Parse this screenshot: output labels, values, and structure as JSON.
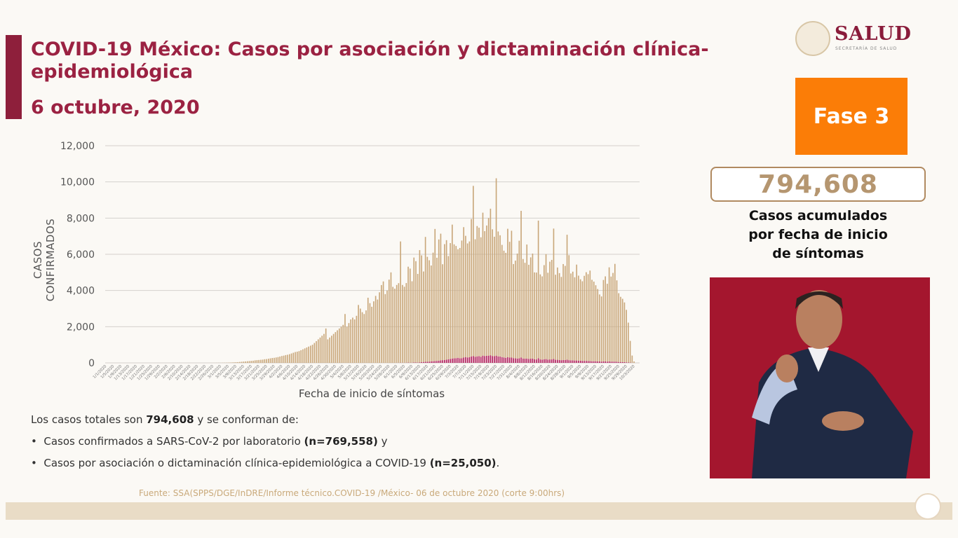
{
  "header": {
    "title_line1": "COVID-19 México: Casos por asociación y dictaminación clínica-",
    "title_line2": "epidemiológica",
    "date": "6 octubre, 2020"
  },
  "logo": {
    "name": "SALUD",
    "subtitle": "SECRETARÍA DE SALUD"
  },
  "side": {
    "phase": "Fase 3",
    "total": "794,608",
    "caption_lines": [
      "Casos acumulados",
      "por fecha de inicio",
      "de síntomas"
    ]
  },
  "summary": {
    "intro_pre": "Los casos totales son ",
    "intro_total": "794,608",
    "intro_post": "  y se conforman de:",
    "bullet1_text": "Casos confirmados a SARS-CoV-2 por laboratorio ",
    "bullet1_n": "(n=769,558)",
    "bullet1_post": " y",
    "bullet2_text": "Casos por asociación o dictaminación clínica-epidemiológica a COVID-19 ",
    "bullet2_n": "(n=25,050)",
    "bullet2_post": "."
  },
  "source": "Fuente: SSA(SPPS/DGE/InDRE/Informe técnico.COVID-19 /México- 06 de octubre  2020 (corte 9:00hrs)",
  "colors": {
    "title": "#9b2242",
    "lab": "#c9a77a",
    "association": "#b0185a",
    "phase": "#fb7d07"
  },
  "chart_data": {
    "type": "bar",
    "stacked": true,
    "xlabel": "Fecha de inicio de síntomas",
    "ylabel": "CASOS CONFIRMADOS",
    "ylim": [
      0,
      12000
    ],
    "yticks": [
      "0",
      "2,000",
      "4,000",
      "6,000",
      "8,000",
      "10,000",
      "12,000"
    ],
    "grid": true,
    "x_first": "1/1/2020",
    "x_last": "10/3/2020",
    "x_tick_every_days": 4,
    "x_ticks": [
      "1/1/2020",
      "1/5/2020",
      "1/9/2020",
      "1/13/2020",
      "1/17/2020",
      "1/21/2020",
      "1/25/2020",
      "1/29/2020",
      "2/2/2020",
      "2/6/2020",
      "2/10/2020",
      "2/14/2020",
      "2/18/2020",
      "2/22/2020",
      "2/26/2020",
      "3/1/2020",
      "3/5/2020",
      "3/9/2020",
      "3/13/2020",
      "3/17/2020",
      "3/21/2020",
      "3/25/2020",
      "3/29/2020",
      "4/2/2020",
      "4/6/2020",
      "4/10/2020",
      "4/14/2020",
      "4/18/2020",
      "4/22/2020",
      "4/26/2020",
      "4/30/2020",
      "5/4/2020",
      "5/8/2020",
      "5/12/2020",
      "5/16/2020",
      "5/20/2020",
      "5/24/2020",
      "5/28/2020",
      "6/1/2020",
      "6/5/2020",
      "6/9/2020",
      "6/13/2020",
      "6/17/2020",
      "6/21/2020",
      "6/25/2020",
      "6/29/2020",
      "7/3/2020",
      "7/7/2020",
      "7/11/2020",
      "7/15/2020",
      "7/19/2020",
      "7/23/2020",
      "7/27/2020",
      "7/31/2020",
      "8/4/2020",
      "8/8/2020",
      "8/12/2020",
      "8/16/2020",
      "8/20/2020",
      "8/24/2020",
      "8/28/2020",
      "9/1/2020",
      "9/5/2020",
      "9/9/2020",
      "9/13/2020",
      "9/17/2020",
      "9/21/2020",
      "9/25/2020",
      "9/29/2020",
      "10/3/2020"
    ],
    "series": [
      {
        "color": "#c9a77a",
        "values": [
          0,
          0,
          0,
          0,
          0,
          0,
          0,
          0,
          0,
          0,
          0,
          0,
          0,
          0,
          0,
          0,
          0,
          0,
          0,
          0,
          0,
          0,
          0,
          0,
          0,
          0,
          0,
          0,
          0,
          0,
          0,
          0,
          0,
          0,
          0,
          0,
          0,
          0,
          0,
          0,
          0,
          0,
          0,
          0,
          0,
          0,
          0,
          0,
          0,
          0,
          0,
          0,
          0,
          0,
          1,
          2,
          2,
          3,
          4,
          5,
          5,
          8,
          10,
          12,
          15,
          20,
          25,
          30,
          35,
          40,
          50,
          60,
          70,
          80,
          90,
          100,
          110,
          120,
          140,
          150,
          160,
          170,
          180,
          200,
          210,
          230,
          250,
          270,
          280,
          300,
          320,
          350,
          380,
          400,
          430,
          450,
          480,
          520,
          560,
          600,
          620,
          650,
          700,
          750,
          800,
          850,
          900,
          950,
          1000,
          1100,
          1200,
          1300,
          1400,
          1500,
          1600,
          1900,
          1300,
          1400,
          1500,
          1600,
          1700,
          1800,
          1900,
          2000,
          2100,
          2700,
          2000,
          2200,
          2400,
          2500,
          2400,
          2600,
          3200,
          3000,
          2800,
          2700,
          2900,
          3600,
          3300,
          3100,
          3400,
          3700,
          3500,
          3900,
          4300,
          4500,
          3800,
          4000,
          4600,
          5000,
          4200,
          4100,
          4300,
          4400,
          6700,
          4300,
          4200,
          4400,
          5300,
          5200,
          4500,
          5800,
          5600,
          4900,
          6200,
          5900,
          5000,
          6900,
          5800,
          5600,
          5300,
          6000,
          7300,
          5700,
          6700,
          7000,
          5300,
          6400,
          6600,
          5700,
          6400,
          7400,
          6300,
          6200,
          6000,
          6100,
          6500,
          7200,
          6700,
          6300,
          6400,
          7600,
          9400,
          6500,
          7200,
          7100,
          6600,
          7900,
          6900,
          7200,
          7600,
          8100,
          7000,
          6600,
          9800,
          6900,
          6700,
          6200,
          5900,
          5800,
          7100,
          6400,
          7000,
          5200,
          5400,
          5800,
          6500,
          8100,
          5500,
          5300,
          6300,
          5200,
          5600,
          5800,
          4800,
          4800,
          7600,
          4700,
          4600,
          5200,
          5800,
          4800,
          5400,
          5500,
          7200,
          4700,
          5100,
          4800,
          4600,
          5300,
          5200,
          6900,
          5800,
          4800,
          4900,
          4600,
          5300,
          4700,
          4500,
          4400,
          4700,
          4900,
          4800,
          5000,
          4500,
          4400,
          4200,
          4000,
          3700,
          3600,
          4500,
          4700,
          4300,
          5200,
          4700,
          4900,
          5400,
          4500,
          3800,
          3600,
          3500,
          3300,
          2900,
          2200,
          1200,
          400,
          80
        ]
      },
      {
        "color": "#b0185a",
        "values": [
          0,
          0,
          0,
          0,
          0,
          0,
          0,
          0,
          0,
          0,
          0,
          0,
          0,
          0,
          0,
          0,
          0,
          0,
          0,
          0,
          0,
          0,
          0,
          0,
          0,
          0,
          0,
          0,
          0,
          0,
          0,
          0,
          0,
          0,
          0,
          0,
          0,
          0,
          0,
          0,
          0,
          0,
          0,
          0,
          0,
          0,
          0,
          0,
          0,
          0,
          0,
          0,
          0,
          0,
          0,
          0,
          0,
          0,
          0,
          0,
          0,
          0,
          0,
          0,
          0,
          0,
          0,
          0,
          0,
          0,
          0,
          0,
          0,
          0,
          0,
          0,
          0,
          0,
          0,
          0,
          0,
          0,
          0,
          0,
          0,
          0,
          0,
          0,
          0,
          0,
          0,
          0,
          0,
          0,
          0,
          0,
          0,
          0,
          0,
          0,
          0,
          0,
          0,
          0,
          0,
          0,
          0,
          0,
          0,
          0,
          0,
          0,
          0,
          0,
          0,
          0,
          0,
          0,
          0,
          0,
          0,
          0,
          0,
          0,
          0,
          0,
          0,
          0,
          0,
          0,
          0,
          0,
          0,
          0,
          0,
          0,
          0,
          0,
          0,
          0,
          0,
          0,
          0,
          0,
          0,
          0,
          0,
          0,
          0,
          0,
          0,
          0,
          5,
          5,
          10,
          5,
          5,
          10,
          15,
          10,
          10,
          20,
          20,
          15,
          30,
          40,
          50,
          60,
          60,
          70,
          80,
          90,
          100,
          110,
          120,
          140,
          150,
          160,
          180,
          200,
          220,
          240,
          250,
          260,
          280,
          250,
          260,
          300,
          320,
          300,
          310,
          350,
          380,
          330,
          360,
          370,
          340,
          400,
          380,
          390,
          400,
          420,
          380,
          370,
          400,
          360,
          350,
          320,
          300,
          280,
          310,
          290,
          300,
          260,
          250,
          240,
          250,
          300,
          240,
          230,
          240,
          220,
          230,
          240,
          200,
          190,
          260,
          190,
          180,
          200,
          210,
          180,
          190,
          190,
          220,
          170,
          170,
          160,
          150,
          160,
          160,
          180,
          150,
          140,
          140,
          130,
          130,
          120,
          120,
          110,
          110,
          110,
          100,
          100,
          90,
          90,
          90,
          80,
          80,
          70,
          80,
          80,
          70,
          80,
          70,
          70,
          70,
          60,
          50,
          50,
          40,
          40,
          30,
          25,
          15,
          5,
          0
        ]
      }
    ]
  }
}
